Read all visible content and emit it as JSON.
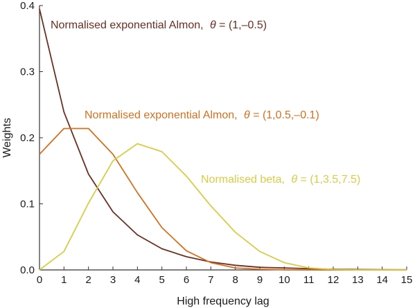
{
  "chart_data": {
    "type": "line",
    "xlabel": "High frequency lag",
    "ylabel": "Weights",
    "xlim": [
      0,
      15
    ],
    "ylim": [
      0,
      0.4
    ],
    "x_ticks": [
      "0",
      "1",
      "2",
      "3",
      "4",
      "5",
      "6",
      "7",
      "8",
      "9",
      "10",
      "11",
      "12",
      "13",
      "14",
      "15"
    ],
    "y_ticks": [
      "0.0",
      "0.1",
      "0.2",
      "0.3",
      "0.4"
    ],
    "grid": false,
    "legend": "none",
    "x": [
      0,
      1,
      2,
      3,
      4,
      5,
      6,
      7,
      8,
      9,
      10,
      11,
      12,
      13,
      14,
      15
    ],
    "series": [
      {
        "name": "Normalised exponential Almon, θ = (1,–0.5)",
        "label_prefix": "Normalised exponential Almon,",
        "label_theta": "θ",
        "label_value": " = (1,–0.5)",
        "color": "#6b2e1f",
        "values": [
          0.395,
          0.239,
          0.145,
          0.088,
          0.053,
          0.032,
          0.02,
          0.012,
          0.007,
          0.004,
          0.003,
          0.002,
          0.001,
          0.0006,
          0.0004,
          0.0002
        ]
      },
      {
        "name": "Normalised exponential Almon, θ = (1,0.5,–0.1)",
        "label_prefix": "Normalised exponential Almon,",
        "label_theta": "θ",
        "label_value": " = (1,0.5,–0.1)",
        "color": "#d4701e",
        "values": [
          0.175,
          0.214,
          0.214,
          0.175,
          0.117,
          0.064,
          0.029,
          0.011,
          0.003,
          0.001,
          0.0002,
          0.0,
          0.0,
          0.0,
          0.0,
          0.0
        ]
      },
      {
        "name": "Normalised beta, θ = (1,3.5,7.5)",
        "label_prefix": "Normalised beta,",
        "label_theta": "θ",
        "label_value": " = (1,3.5,7.5)",
        "color": "#d9cc45",
        "values": [
          0.0,
          0.028,
          0.101,
          0.165,
          0.191,
          0.179,
          0.142,
          0.097,
          0.057,
          0.028,
          0.011,
          0.003,
          0.0006,
          0.0,
          0.0,
          0.0
        ]
      }
    ]
  }
}
